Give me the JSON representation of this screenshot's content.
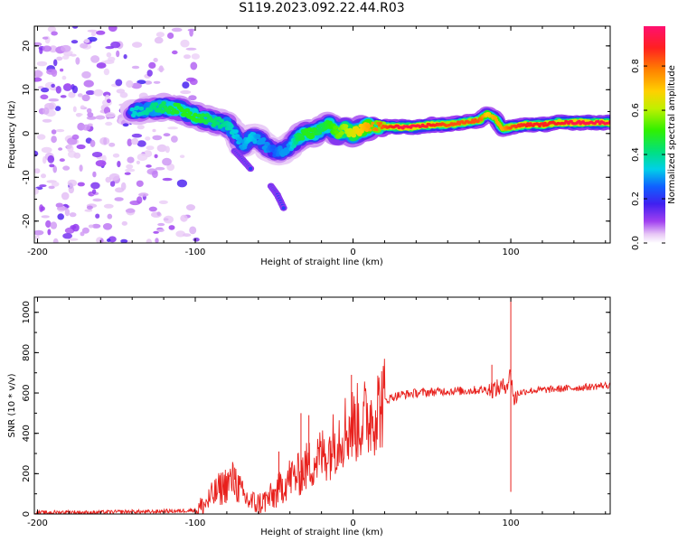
{
  "figure": {
    "title": "S119.2023.092.22.44.R03"
  },
  "chart_data": [
    {
      "type": "heatmap",
      "title": "S119.2023.092.22.44.R03",
      "xlabel": "Height of straight line (km)",
      "ylabel": "Frequency (Hz)",
      "xlim": [
        -202,
        163
      ],
      "ylim": [
        -25,
        24.5
      ],
      "x_ticks": [
        -200,
        -100,
        0,
        100
      ],
      "y_ticks": [
        -20,
        -10,
        0,
        10,
        20
      ],
      "colorbar": {
        "label": "Normalized spectral amplitude",
        "ticks": [
          "0.0",
          "0.2",
          "0.4",
          "0.6",
          "0.8"
        ],
        "tick_values": [
          0.0,
          0.2,
          0.4,
          0.6,
          0.8
        ],
        "range": [
          0,
          0.98
        ]
      },
      "ridge": {
        "x": [
          -140,
          -130,
          -120,
          -110,
          -100,
          -90,
          -80,
          -75,
          -70,
          -65,
          -60,
          -55,
          -50,
          -45,
          -40,
          -35,
          -30,
          -25,
          -20,
          -15,
          -10,
          -5,
          0,
          5,
          10,
          20,
          30,
          40,
          50,
          60,
          70,
          80,
          85,
          90,
          95,
          100,
          110,
          120,
          130,
          140,
          150,
          163
        ],
        "y": [
          5,
          5.5,
          6,
          5.5,
          4,
          3,
          2,
          0,
          -3,
          -1,
          -1,
          -3,
          -4,
          -4,
          -3,
          -1,
          0,
          0,
          1,
          2,
          0,
          1,
          0,
          1,
          1.5,
          1.5,
          1.5,
          1.5,
          2,
          2,
          2.5,
          3,
          4.5,
          3.5,
          1,
          1.5,
          2,
          2,
          2.5,
          2.5,
          2.5,
          2.5
        ],
        "amplitude": [
          0.35,
          0.4,
          0.45,
          0.5,
          0.5,
          0.45,
          0.4,
          0.35,
          0.3,
          0.35,
          0.3,
          0.3,
          0.25,
          0.3,
          0.3,
          0.45,
          0.5,
          0.5,
          0.45,
          0.5,
          0.55,
          0.6,
          0.65,
          0.7,
          0.75,
          0.85,
          0.95,
          0.95,
          0.9,
          0.85,
          0.85,
          0.85,
          0.7,
          0.75,
          0.75,
          0.85,
          0.9,
          0.9,
          0.9,
          0.95,
          0.95,
          0.95
        ]
      },
      "branches": [
        {
          "x": [
            -75,
            -70,
            -65
          ],
          "y": [
            -4,
            -6,
            -8
          ]
        },
        {
          "x": [
            -52,
            -48,
            -44
          ],
          "y": [
            -12,
            -14,
            -17
          ]
        }
      ],
      "noise_region_x": [
        -202,
        -100
      ]
    },
    {
      "type": "line",
      "xlabel": "Height of straight line (km)",
      "ylabel": "SNR (10 * v/v)",
      "xlim": [
        -202,
        163
      ],
      "ylim": [
        0,
        1075
      ],
      "x_ticks": [
        -200,
        -100,
        0,
        100
      ],
      "y_ticks": [
        0,
        200,
        400,
        600,
        800,
        1000
      ],
      "series": [
        {
          "color": "#e8201c",
          "x": [
            -202,
            -190,
            -180,
            -170,
            -160,
            -150,
            -140,
            -130,
            -120,
            -110,
            -100,
            -95,
            -90,
            -85,
            -80,
            -75,
            -70,
            -65,
            -60,
            -55,
            -50,
            -45,
            -40,
            -35,
            -30,
            -25,
            -20,
            -15,
            -10,
            -5,
            0,
            5,
            10,
            15,
            20,
            25,
            30,
            40,
            50,
            60,
            70,
            80,
            90,
            95,
            98,
            100,
            102,
            105,
            110,
            120,
            130,
            140,
            150,
            163
          ],
          "y": [
            5,
            8,
            10,
            7,
            8,
            10,
            12,
            10,
            14,
            15,
            20,
            40,
            80,
            120,
            150,
            170,
            90,
            60,
            50,
            70,
            90,
            140,
            180,
            190,
            230,
            260,
            290,
            320,
            380,
            420,
            440,
            460,
            480,
            520,
            560,
            580,
            590,
            600,
            605,
            610,
            610,
            615,
            620,
            630,
            650,
            700,
            560,
            600,
            610,
            615,
            620,
            625,
            630,
            640
          ]
        }
      ],
      "spikes": [
        {
          "x": -75,
          "y": 230
        },
        {
          "x": -47,
          "y": 310
        },
        {
          "x": -33,
          "y": 500
        },
        {
          "x": -28,
          "y": 490
        },
        {
          "x": -1,
          "y": 690
        },
        {
          "x": 88,
          "y": 740
        },
        {
          "x": 100,
          "y": 1075
        },
        {
          "x": 100,
          "y": 110
        }
      ]
    }
  ]
}
